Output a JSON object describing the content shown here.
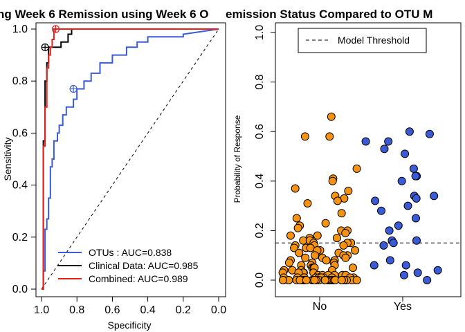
{
  "chart_data": [
    {
      "type": "line",
      "title": "ng Week 6 Remission using Week 6 O",
      "xlabel": "Specificity",
      "ylabel": "Sensitivity",
      "xlim": [
        1.0,
        0.0
      ],
      "ylim": [
        0.0,
        1.0
      ],
      "x_reversed": true,
      "x_ticks": [
        "1.0",
        "0.8",
        "0.6",
        "0.4",
        "0.2",
        "0.0"
      ],
      "y_ticks": [
        "0.0",
        "0.2",
        "0.4",
        "0.6",
        "0.8",
        "1.0"
      ],
      "diagonal_reference": true,
      "legend_position": "bottom-right",
      "series": [
        {
          "name": "OTUs : AUC=0.838",
          "color": "#3a5ad6",
          "threshold_marker": [
            0.82,
            0.77
          ],
          "points": [
            [
              1.0,
              0.0
            ],
            [
              0.99,
              0.0
            ],
            [
              0.99,
              0.07
            ],
            [
              0.98,
              0.07
            ],
            [
              0.98,
              0.23
            ],
            [
              0.97,
              0.23
            ],
            [
              0.97,
              0.27
            ],
            [
              0.96,
              0.27
            ],
            [
              0.96,
              0.35
            ],
            [
              0.95,
              0.35
            ],
            [
              0.95,
              0.47
            ],
            [
              0.94,
              0.47
            ],
            [
              0.94,
              0.5
            ],
            [
              0.93,
              0.5
            ],
            [
              0.93,
              0.57
            ],
            [
              0.91,
              0.57
            ],
            [
              0.91,
              0.6
            ],
            [
              0.9,
              0.6
            ],
            [
              0.9,
              0.63
            ],
            [
              0.88,
              0.63
            ],
            [
              0.88,
              0.67
            ],
            [
              0.86,
              0.67
            ],
            [
              0.86,
              0.7
            ],
            [
              0.82,
              0.7
            ],
            [
              0.82,
              0.73
            ],
            [
              0.8,
              0.73
            ],
            [
              0.8,
              0.77
            ],
            [
              0.76,
              0.77
            ],
            [
              0.76,
              0.8
            ],
            [
              0.72,
              0.8
            ],
            [
              0.72,
              0.83
            ],
            [
              0.67,
              0.83
            ],
            [
              0.67,
              0.87
            ],
            [
              0.6,
              0.87
            ],
            [
              0.6,
              0.9
            ],
            [
              0.52,
              0.9
            ],
            [
              0.52,
              0.93
            ],
            [
              0.46,
              0.93
            ],
            [
              0.46,
              0.95
            ],
            [
              0.4,
              0.95
            ],
            [
              0.4,
              0.97
            ],
            [
              0.2,
              0.97
            ],
            [
              0.2,
              0.98
            ],
            [
              0.0,
              1.0
            ]
          ]
        },
        {
          "name": "Clinical Data: AUC=0.985",
          "color": "#000000",
          "threshold_marker": [
            0.98,
            0.93
          ],
          "points": [
            [
              1.0,
              0.0
            ],
            [
              0.99,
              0.0
            ],
            [
              0.99,
              0.57
            ],
            [
              0.98,
              0.57
            ],
            [
              0.98,
              0.8
            ],
            [
              0.97,
              0.8
            ],
            [
              0.97,
              0.87
            ],
            [
              0.96,
              0.87
            ],
            [
              0.96,
              0.93
            ],
            [
              0.89,
              0.93
            ],
            [
              0.89,
              0.95
            ],
            [
              0.85,
              0.95
            ],
            [
              0.85,
              0.98
            ],
            [
              0.83,
              0.98
            ],
            [
              0.83,
              1.0
            ],
            [
              0.0,
              1.0
            ]
          ]
        },
        {
          "name": "Combined: AUC=0.989",
          "color": "#e8201a",
          "threshold_marker": [
            0.92,
            1.0
          ],
          "points": [
            [
              1.0,
              0.0
            ],
            [
              0.99,
              0.0
            ],
            [
              0.99,
              0.55
            ],
            [
              0.98,
              0.55
            ],
            [
              0.98,
              0.7
            ],
            [
              0.97,
              0.7
            ],
            [
              0.97,
              0.85
            ],
            [
              0.96,
              0.85
            ],
            [
              0.96,
              0.9
            ],
            [
              0.95,
              0.9
            ],
            [
              0.95,
              0.93
            ],
            [
              0.94,
              0.93
            ],
            [
              0.94,
              0.96
            ],
            [
              0.93,
              0.96
            ],
            [
              0.93,
              1.0
            ],
            [
              0.0,
              1.0
            ]
          ]
        }
      ]
    },
    {
      "type": "scatter",
      "title": "emission Status Compared to OTU M",
      "xlabel": "",
      "ylabel": "Probability of Response",
      "categories": [
        "No",
        "Yes"
      ],
      "ylim": [
        0.0,
        1.0
      ],
      "y_ticks": [
        "0.0",
        "0.2",
        "0.4",
        "0.6",
        "0.8",
        "1.0"
      ],
      "threshold": {
        "name": "Model Threshold",
        "value": 0.15,
        "style": "dashed"
      },
      "legend_position": "top-right",
      "series": [
        {
          "category": "No",
          "color": "#f7930f",
          "values": [
            0.66,
            0.58,
            0.58,
            0.45,
            0.41,
            0.4,
            0.37,
            0.36,
            0.34,
            0.33,
            0.32,
            0.31,
            0.27,
            0.25,
            0.23,
            0.22,
            0.21,
            0.2,
            0.2,
            0.19,
            0.18,
            0.18,
            0.17,
            0.17,
            0.16,
            0.16,
            0.15,
            0.15,
            0.15,
            0.14,
            0.14,
            0.14,
            0.13,
            0.13,
            0.13,
            0.12,
            0.12,
            0.12,
            0.11,
            0.11,
            0.1,
            0.1,
            0.1,
            0.09,
            0.09,
            0.09,
            0.08,
            0.08,
            0.08,
            0.07,
            0.07,
            0.07,
            0.06,
            0.06,
            0.06,
            0.05,
            0.05,
            0.05,
            0.05,
            0.04,
            0.04,
            0.04,
            0.04,
            0.03,
            0.03,
            0.03,
            0.03,
            0.03,
            0.02,
            0.02,
            0.02,
            0.02,
            0.02,
            0.02,
            0.01,
            0.01,
            0.01,
            0.01,
            0.01,
            0.01,
            0.01,
            0.01,
            0.01,
            0.01,
            0.01,
            0.0,
            0.0,
            0.0,
            0.0,
            0.0,
            0.0,
            0.0,
            0.0,
            0.0,
            0.0,
            0.0,
            0.0,
            0.0,
            0.0,
            0.0,
            0.0,
            0.0,
            0.0,
            0.0,
            0.0,
            0.0,
            0.0,
            0.0,
            0.0,
            0.0,
            0.0,
            0.0,
            0.0,
            0.0,
            0.0,
            0.0,
            0.0,
            0.0,
            0.0,
            0.0
          ]
        },
        {
          "category": "Yes",
          "color": "#3a5ad6",
          "values": [
            0.6,
            0.59,
            0.56,
            0.56,
            0.53,
            0.51,
            0.45,
            0.42,
            0.42,
            0.4,
            0.34,
            0.34,
            0.33,
            0.32,
            0.3,
            0.28,
            0.25,
            0.22,
            0.2,
            0.16,
            0.16,
            0.15,
            0.14,
            0.08,
            0.06,
            0.06,
            0.04,
            0.03,
            0.02,
            0.0
          ]
        }
      ]
    }
  ]
}
